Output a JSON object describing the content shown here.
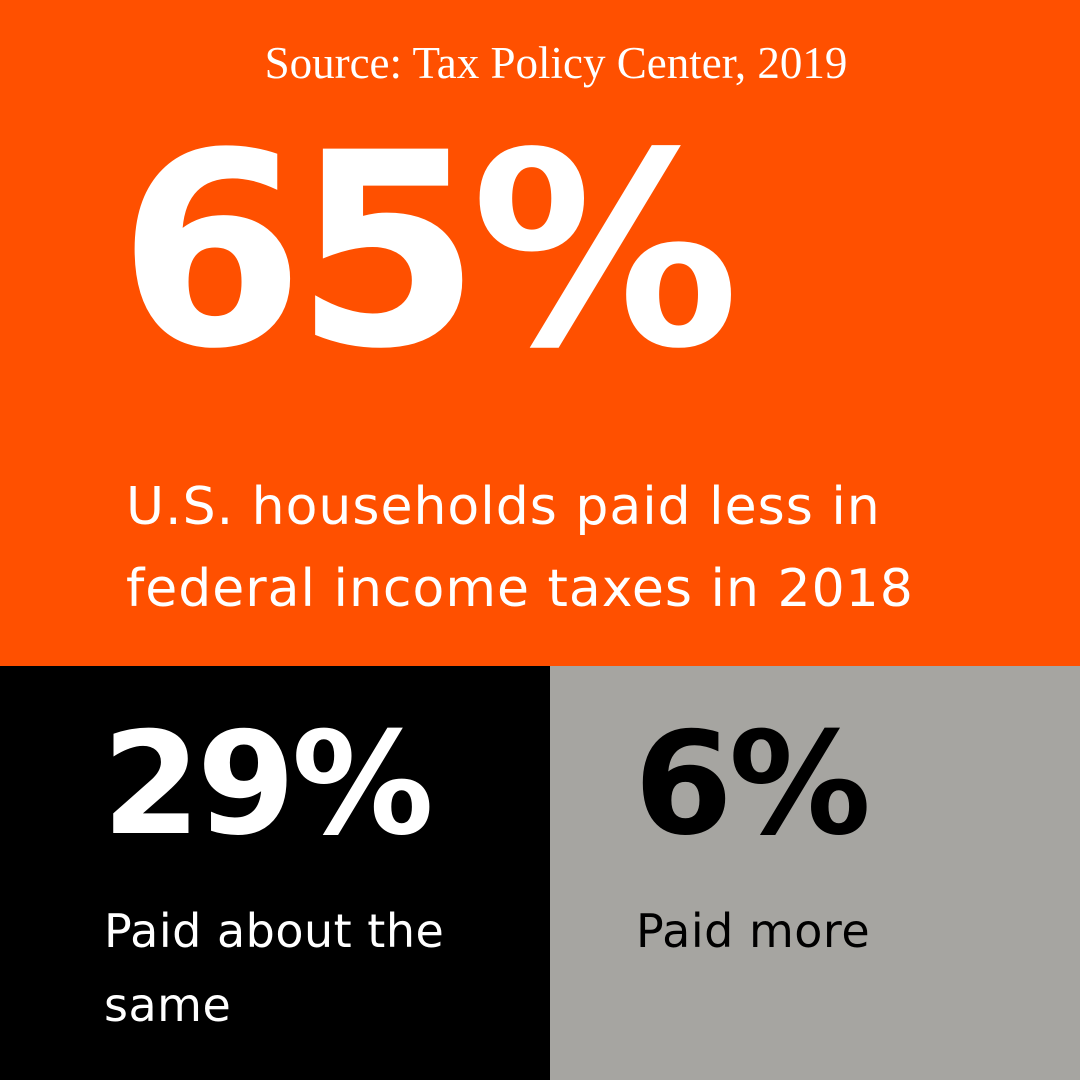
{
  "source": "Source: Tax Policy Center, 2019",
  "headline": {
    "value": "65%",
    "description": "U.S. households paid less in federal income taxes in 2018"
  },
  "stats": [
    {
      "value": "29%",
      "label": "Paid about the same"
    },
    {
      "value": "6%",
      "label": "Paid more"
    }
  ],
  "colors": {
    "orange": "#FF5000",
    "black": "#000000",
    "gray": "#A6A5A1",
    "white": "#FFFFFF"
  }
}
